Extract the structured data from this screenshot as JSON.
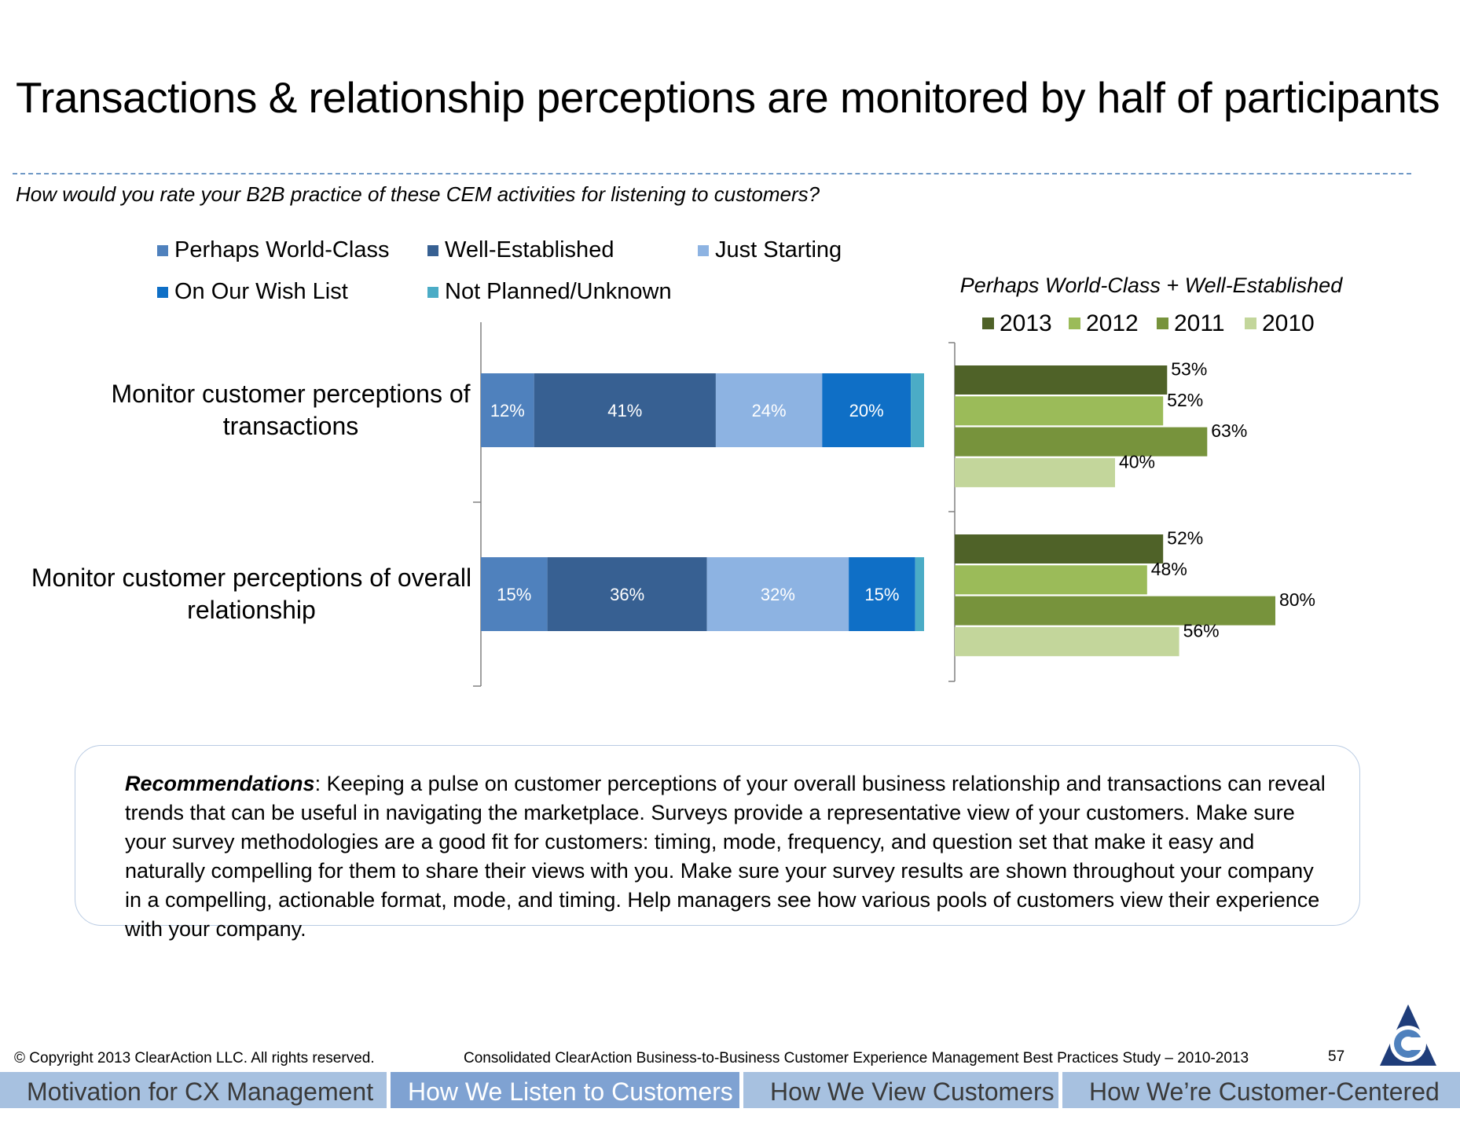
{
  "slide": {
    "title": "Transactions & relationship perceptions are monitored by half of participants",
    "question": "How would you rate your B2B practice of these CEM activities for listening to customers?"
  },
  "chart_data": [
    {
      "type": "bar",
      "orientation": "horizontal",
      "stacked": true,
      "categories": [
        "Monitor customer perceptions of transactions",
        "Monitor customer perceptions of overall relationship"
      ],
      "category_lines": [
        [
          "Monitor customer perceptions of",
          "transactions"
        ],
        [
          "Monitor customer perceptions of overall",
          "relationship"
        ]
      ],
      "series": [
        {
          "name": "Perhaps World-Class",
          "values": [
            12,
            15
          ],
          "labels": [
            "12%",
            "15%"
          ],
          "color": "#4f81bd"
        },
        {
          "name": "Well-Established",
          "values": [
            41,
            36
          ],
          "labels": [
            "41%",
            "36%"
          ],
          "color": "#376092"
        },
        {
          "name": "Just Starting",
          "values": [
            24,
            32
          ],
          "labels": [
            "24%",
            "32%"
          ],
          "color": "#8db3e2"
        },
        {
          "name": "On Our Wish List",
          "values": [
            20,
            15
          ],
          "labels": [
            "20%",
            "15%"
          ],
          "color": "#0f6fc6"
        },
        {
          "name": "Not Planned/Unknown",
          "values": [
            3,
            2
          ],
          "labels": [
            "",
            ""
          ],
          "color": "#4bacc6"
        }
      ],
      "legend_position": "top",
      "xlim": [
        0,
        100
      ],
      "grid": false
    },
    {
      "type": "bar",
      "orientation": "horizontal",
      "title": "Perhaps World-Class + Well-Established",
      "categories": [
        "Monitor customer perceptions of transactions",
        "Monitor customer perceptions of overall relationship"
      ],
      "series": [
        {
          "name": "2013",
          "values": [
            53,
            52
          ],
          "labels": [
            "53%",
            "52%"
          ],
          "color": "#4f6228"
        },
        {
          "name": "2012",
          "values": [
            52,
            48
          ],
          "labels": [
            "52%",
            "48%"
          ],
          "color": "#9bbb59"
        },
        {
          "name": "2011",
          "values": [
            63,
            80
          ],
          "labels": [
            "63%",
            "80%"
          ],
          "color": "#77933c"
        },
        {
          "name": "2010",
          "values": [
            40,
            56
          ],
          "labels": [
            "40%",
            "56%"
          ],
          "color": "#c3d69b"
        }
      ],
      "legend_position": "top",
      "xlim": [
        0,
        100
      ],
      "grid": false
    }
  ],
  "recommendation": {
    "label": "Recommendations",
    "text": ": Keeping a pulse on customer perceptions of your overall business relationship and transactions can reveal trends that can be useful in navigating the marketplace.  Surveys provide a representative view of your customers.  Make sure your survey methodologies are a good fit for customers: timing, mode, frequency, and question set that make it easy and naturally compelling for them to share their views with you. Make sure your survey results are shown throughout your company in a compelling, actionable format, mode, and timing.  Help managers see how various pools of customers view their experience with your company."
  },
  "footer": {
    "copyright": "© Copyright 2013 ClearAction LLC. All rights reserved.",
    "source": "Consolidated ClearAction Business-to-Business Customer Experience Management Best Practices Study – 2010-2013",
    "page_number": "57",
    "logo_icon": "clearaction-logo-icon"
  },
  "nav": {
    "tabs": [
      {
        "label": "Motivation for CX Management",
        "active": false
      },
      {
        "label": "How We Listen to Customers",
        "active": true
      },
      {
        "label": "How We View Customers",
        "active": false
      },
      {
        "label": "How We’re Customer-Centered",
        "active": false
      }
    ]
  }
}
